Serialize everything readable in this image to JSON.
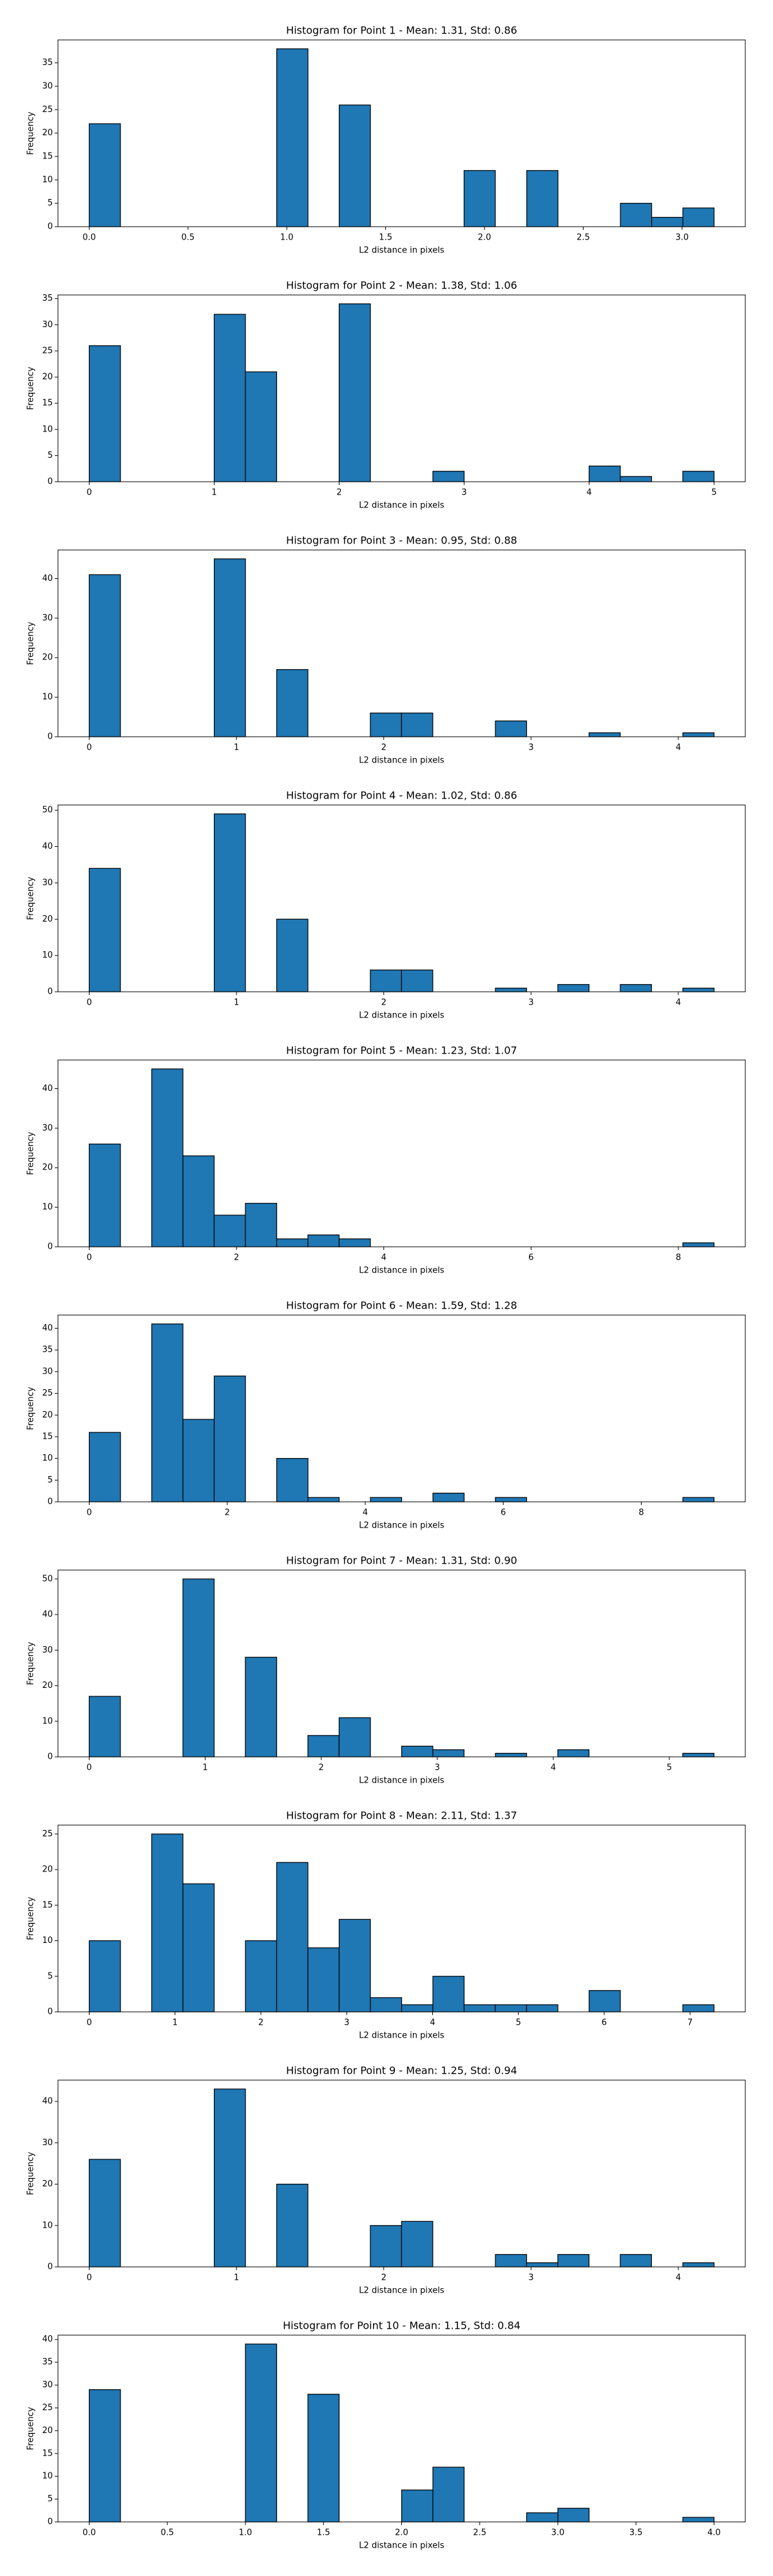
{
  "chart_data": [
    {
      "type": "histogram",
      "title": "Histogram for Point 1 - Mean: 1.31, Std: 0.86",
      "xlabel": "L2 distance in pixels",
      "ylabel": "Frequency",
      "color": "#1f77b4",
      "bins": [
        0,
        0.158,
        0.316,
        0.474,
        0.632,
        0.791,
        0.949,
        1.107,
        1.265,
        1.423,
        1.581,
        1.739,
        1.897,
        2.055,
        2.214,
        2.372,
        2.53,
        2.688,
        2.846,
        3.004,
        3.162
      ],
      "counts": [
        22,
        0,
        0,
        0,
        0,
        0,
        38,
        0,
        26,
        0,
        0,
        0,
        12,
        0,
        12,
        0,
        0,
        5,
        2,
        4
      ],
      "xlim": [
        -0.158,
        3.32
      ],
      "ylim": [
        0,
        39.9
      ],
      "xticks": [
        {
          "value": 0,
          "label": "0.0"
        },
        0.5,
        {
          "value": 1,
          "label": "1.0"
        },
        1.5,
        {
          "value": 2,
          "label": "2.0"
        },
        2.5,
        {
          "value": 3,
          "label": "3.0"
        }
      ],
      "yticks": [
        0,
        5,
        10,
        15,
        20,
        25,
        30,
        35
      ]
    },
    {
      "type": "histogram",
      "title": "Histogram for Point 2 - Mean: 1.38, Std: 1.06",
      "xlabel": "L2 distance in pixels",
      "ylabel": "Frequency",
      "color": "#1f77b4",
      "bins": [
        0,
        0.25,
        0.5,
        0.75,
        1,
        1.25,
        1.5,
        1.75,
        2,
        2.25,
        2.5,
        2.75,
        3,
        3.25,
        3.5,
        3.75,
        4,
        4.25,
        4.5,
        4.75,
        5
      ],
      "counts": [
        26,
        0,
        0,
        0,
        32,
        21,
        0,
        0,
        34,
        0,
        0,
        2,
        0,
        0,
        0,
        0,
        3,
        1,
        0,
        2
      ],
      "xlim": [
        -0.25,
        5.25
      ],
      "ylim": [
        0,
        35.7
      ],
      "xticks": [
        0,
        1,
        2,
        3,
        4,
        5
      ],
      "yticks": [
        0,
        5,
        10,
        15,
        20,
        25,
        30,
        35
      ]
    },
    {
      "type": "histogram",
      "title": "Histogram for Point 3 - Mean: 0.95, Std: 0.88",
      "xlabel": "L2 distance in pixels",
      "ylabel": "Frequency",
      "color": "#1f77b4",
      "bins": [
        0,
        0.212,
        0.424,
        0.636,
        0.849,
        1.061,
        1.273,
        1.485,
        1.697,
        1.909,
        2.121,
        2.333,
        2.546,
        2.758,
        2.97,
        3.182,
        3.394,
        3.606,
        3.818,
        4.031,
        4.243
      ],
      "counts": [
        41,
        0,
        0,
        0,
        45,
        0,
        17,
        0,
        0,
        6,
        6,
        0,
        0,
        4,
        0,
        0,
        1,
        0,
        0,
        1
      ],
      "xlim": [
        -0.212,
        4.455
      ],
      "ylim": [
        0,
        47.25
      ],
      "xticks": [
        0,
        1,
        2,
        3,
        4
      ],
      "yticks": [
        0,
        10,
        20,
        30,
        40
      ]
    },
    {
      "type": "histogram",
      "title": "Histogram for Point 4 - Mean: 1.02, Std: 0.86",
      "xlabel": "L2 distance in pixels",
      "ylabel": "Frequency",
      "color": "#1f77b4",
      "bins": [
        0,
        0.212,
        0.424,
        0.636,
        0.849,
        1.061,
        1.273,
        1.485,
        1.697,
        1.909,
        2.121,
        2.333,
        2.546,
        2.758,
        2.97,
        3.182,
        3.394,
        3.606,
        3.818,
        4.031,
        4.243
      ],
      "counts": [
        34,
        0,
        0,
        0,
        49,
        0,
        20,
        0,
        0,
        6,
        6,
        0,
        0,
        1,
        0,
        2,
        0,
        2,
        0,
        1
      ],
      "xlim": [
        -0.212,
        4.455
      ],
      "ylim": [
        0,
        51.45
      ],
      "xticks": [
        0,
        1,
        2,
        3,
        4
      ],
      "yticks": [
        0,
        10,
        20,
        30,
        40,
        50
      ]
    },
    {
      "type": "histogram",
      "title": "Histogram for Point 5 - Mean: 1.23, Std: 1.07",
      "xlabel": "L2 distance in pixels",
      "ylabel": "Frequency",
      "color": "#1f77b4",
      "bins": [
        0,
        0.424,
        0.849,
        1.273,
        1.697,
        2.121,
        2.546,
        2.97,
        3.394,
        3.818,
        4.243,
        4.667,
        5.091,
        5.515,
        5.94,
        6.364,
        6.788,
        7.212,
        7.637,
        8.061,
        8.485
      ],
      "counts": [
        26,
        0,
        45,
        23,
        8,
        11,
        2,
        3,
        2,
        0,
        0,
        0,
        0,
        0,
        0,
        0,
        0,
        0,
        0,
        1
      ],
      "xlim": [
        -0.424,
        8.909
      ],
      "ylim": [
        0,
        47.25
      ],
      "xticks": [
        0,
        2,
        4,
        6,
        8
      ],
      "yticks": [
        0,
        10,
        20,
        30,
        40
      ]
    },
    {
      "type": "histogram",
      "title": "Histogram for Point 6 - Mean: 1.59, Std: 1.28",
      "xlabel": "L2 distance in pixels",
      "ylabel": "Frequency",
      "color": "#1f77b4",
      "bins": [
        0,
        0.453,
        0.906,
        1.358,
        1.811,
        2.264,
        2.717,
        3.17,
        3.622,
        4.075,
        4.528,
        4.981,
        5.433,
        5.886,
        6.339,
        6.792,
        7.244,
        7.697,
        8.15,
        8.603,
        9.055
      ],
      "counts": [
        16,
        0,
        41,
        19,
        29,
        0,
        10,
        1,
        0,
        1,
        0,
        2,
        0,
        1,
        0,
        0,
        0,
        0,
        0,
        1
      ],
      "xlim": [
        -0.453,
        9.508
      ],
      "ylim": [
        0,
        43.05
      ],
      "xticks": [
        0,
        2,
        4,
        6,
        8
      ],
      "yticks": [
        0,
        5,
        10,
        15,
        20,
        25,
        30,
        35,
        40
      ]
    },
    {
      "type": "histogram",
      "title": "Histogram for Point 7 - Mean: 1.31, Std: 0.90",
      "xlabel": "L2 distance in pixels",
      "ylabel": "Frequency",
      "color": "#1f77b4",
      "bins": [
        0,
        0.269,
        0.539,
        0.808,
        1.077,
        1.346,
        1.616,
        1.885,
        2.154,
        2.424,
        2.693,
        2.962,
        3.231,
        3.501,
        3.77,
        4.039,
        4.308,
        4.578,
        4.847,
        5.116,
        5.385
      ],
      "counts": [
        17,
        0,
        0,
        50,
        0,
        28,
        0,
        6,
        11,
        0,
        3,
        2,
        0,
        1,
        0,
        2,
        0,
        0,
        0,
        1
      ],
      "xlim": [
        -0.269,
        5.655
      ],
      "ylim": [
        0,
        52.5
      ],
      "xticks": [
        0,
        1,
        2,
        3,
        4,
        5
      ],
      "yticks": [
        0,
        10,
        20,
        30,
        40,
        50
      ]
    },
    {
      "type": "histogram",
      "title": "Histogram for Point 8 - Mean: 2.11, Std: 1.37",
      "xlabel": "L2 distance in pixels",
      "ylabel": "Frequency",
      "color": "#1f77b4",
      "bins": [
        0,
        0.364,
        0.728,
        1.092,
        1.456,
        1.82,
        2.184,
        2.548,
        2.912,
        3.276,
        3.64,
        4.004,
        4.368,
        4.732,
        5.096,
        5.46,
        5.824,
        6.188,
        6.552,
        6.916,
        7.28
      ],
      "counts": [
        10,
        0,
        25,
        18,
        0,
        10,
        21,
        9,
        13,
        2,
        1,
        5,
        1,
        1,
        1,
        0,
        3,
        0,
        0,
        1
      ],
      "xlim": [
        -0.364,
        7.644
      ],
      "ylim": [
        0,
        26.25
      ],
      "xticks": [
        0,
        1,
        2,
        3,
        4,
        5,
        6,
        7
      ],
      "yticks": [
        0,
        5,
        10,
        15,
        20,
        25
      ]
    },
    {
      "type": "histogram",
      "title": "Histogram for Point 9 - Mean: 1.25, Std: 0.94",
      "xlabel": "L2 distance in pixels",
      "ylabel": "Frequency",
      "color": "#1f77b4",
      "bins": [
        0,
        0.212,
        0.424,
        0.636,
        0.849,
        1.061,
        1.273,
        1.485,
        1.697,
        1.909,
        2.121,
        2.333,
        2.546,
        2.758,
        2.97,
        3.182,
        3.394,
        3.606,
        3.818,
        4.031,
        4.243
      ],
      "counts": [
        26,
        0,
        0,
        0,
        43,
        0,
        20,
        0,
        0,
        10,
        11,
        0,
        0,
        3,
        1,
        3,
        0,
        3,
        0,
        1
      ],
      "xlim": [
        -0.212,
        4.455
      ],
      "ylim": [
        0,
        45.15
      ],
      "xticks": [
        0,
        1,
        2,
        3,
        4
      ],
      "yticks": [
        0,
        10,
        20,
        30,
        40
      ]
    },
    {
      "type": "histogram",
      "title": "Histogram for Point 10 - Mean: 1.15, Std: 0.84",
      "xlabel": "L2 distance in pixels",
      "ylabel": "Frequency",
      "color": "#1f77b4",
      "bins": [
        0,
        0.2,
        0.4,
        0.6,
        0.8,
        1,
        1.2,
        1.4,
        1.6,
        1.8,
        2,
        2.2,
        2.4,
        2.6,
        2.8,
        3,
        3.2,
        3.4,
        3.6,
        3.8,
        4
      ],
      "counts": [
        29,
        0,
        0,
        0,
        0,
        39,
        0,
        28,
        0,
        0,
        7,
        12,
        0,
        0,
        2,
        3,
        0,
        0,
        0,
        1
      ],
      "xlim": [
        -0.2,
        4.2
      ],
      "ylim": [
        0,
        40.95
      ],
      "xticks": [
        {
          "value": 0,
          "label": "0.0"
        },
        0.5,
        {
          "value": 1,
          "label": "1.0"
        },
        1.5,
        {
          "value": 2,
          "label": "2.0"
        },
        2.5,
        {
          "value": 3,
          "label": "3.0"
        },
        3.5,
        {
          "value": 4,
          "label": "4.0"
        }
      ],
      "yticks": [
        0,
        5,
        10,
        15,
        20,
        25,
        30,
        35,
        40
      ]
    }
  ]
}
